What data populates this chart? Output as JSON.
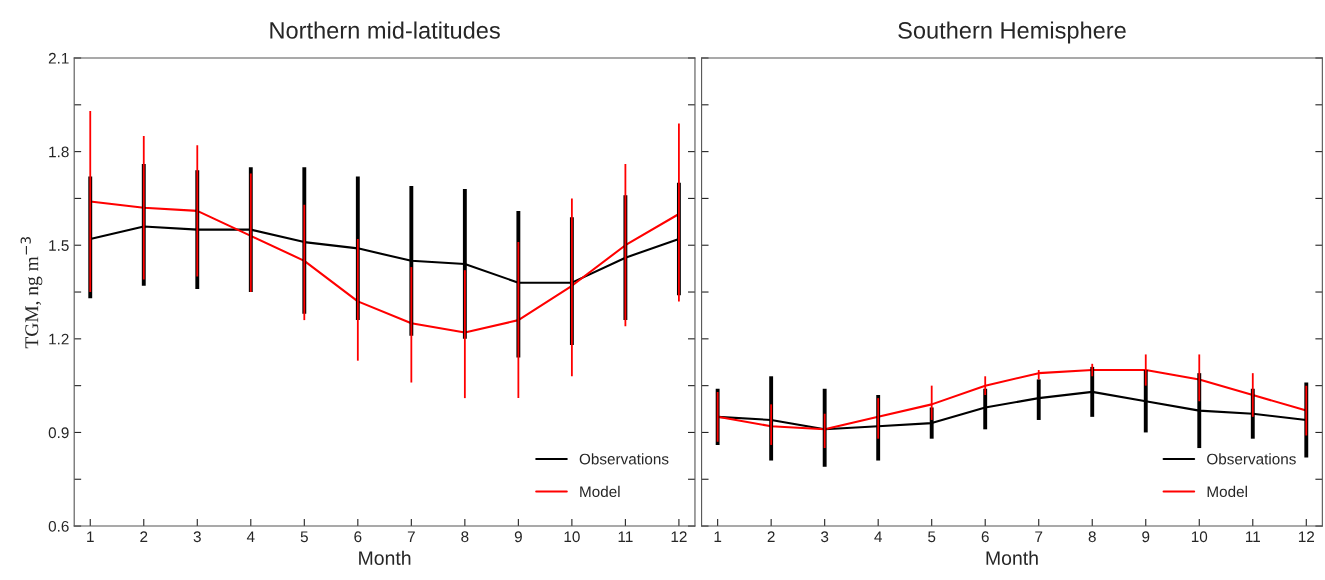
{
  "chart_data": [
    {
      "type": "line",
      "title": "Northern mid-latitudes",
      "xlabel": "Month",
      "ylabel": "TGM, ng m$^{−3}$",
      "x": [
        1,
        2,
        3,
        4,
        5,
        6,
        7,
        8,
        9,
        10,
        11,
        12
      ],
      "xlim": [
        0.7,
        12.3
      ],
      "xticks": [
        1,
        2,
        3,
        4,
        5,
        6,
        7,
        8,
        9,
        10,
        11,
        12
      ],
      "ylim": [
        0.6,
        2.1
      ],
      "yticks": [
        0.6,
        {
          "value": 0.75,
          "label": null
        },
        0.9,
        {
          "value": 1.05,
          "label": null
        },
        1.2,
        {
          "value": 1.35,
          "label": null
        },
        1.5,
        {
          "value": 1.65,
          "label": null
        },
        1.8,
        {
          "value": 1.95,
          "label": null
        },
        2.1
      ],
      "grid": false,
      "legend": "bottom right",
      "marker": "none",
      "line_style": "solid",
      "series": [
        {
          "name": "Observations",
          "color": "#000000",
          "values": [
            1.52,
            1.56,
            1.55,
            1.55,
            1.51,
            1.49,
            1.45,
            1.44,
            1.38,
            1.38,
            1.46,
            1.52
          ],
          "errors": [
            [
              1.33,
              1.72
            ],
            [
              1.37,
              1.76
            ],
            [
              1.36,
              1.74
            ],
            [
              1.35,
              1.75
            ],
            [
              1.28,
              1.75
            ],
            [
              1.26,
              1.72
            ],
            [
              1.21,
              1.69
            ],
            [
              1.2,
              1.68
            ],
            [
              1.14,
              1.61
            ],
            [
              1.18,
              1.59
            ],
            [
              1.26,
              1.66
            ],
            [
              1.34,
              1.7
            ]
          ]
        },
        {
          "name": "Model",
          "color": "#ff0000",
          "values": [
            1.64,
            1.62,
            1.61,
            1.53,
            1.45,
            1.32,
            1.25,
            1.22,
            1.26,
            1.37,
            1.5,
            1.6
          ],
          "errors": [
            [
              1.35,
              1.93
            ],
            [
              1.39,
              1.85
            ],
            [
              1.4,
              1.82
            ],
            [
              1.35,
              1.73
            ],
            [
              1.26,
              1.63
            ],
            [
              1.13,
              1.52
            ],
            [
              1.06,
              1.43
            ],
            [
              1.01,
              1.42
            ],
            [
              1.01,
              1.51
            ],
            [
              1.08,
              1.65
            ],
            [
              1.24,
              1.76
            ],
            [
              1.32,
              1.89
            ]
          ]
        }
      ]
    },
    {
      "type": "line",
      "title": "Southern Hemisphere",
      "xlabel": "Month",
      "x": [
        1,
        2,
        3,
        4,
        5,
        6,
        7,
        8,
        9,
        10,
        11,
        12
      ],
      "xlim": [
        0.7,
        12.3
      ],
      "xticks": [
        1,
        2,
        3,
        4,
        5,
        6,
        7,
        8,
        9,
        10,
        11,
        12
      ],
      "ylim": [
        0.6,
        2.1
      ],
      "yticks": [
        0.6,
        {
          "value": 0.75,
          "label": null
        },
        0.9,
        {
          "value": 1.05,
          "label": null
        },
        1.2,
        {
          "value": 1.35,
          "label": null
        },
        1.5,
        {
          "value": 1.65,
          "label": null
        },
        1.8,
        {
          "value": 1.95,
          "label": null
        },
        2.1
      ],
      "tick_labels": "x",
      "grid": false,
      "legend": "bottom right",
      "marker": "none",
      "line_style": "solid",
      "series": [
        {
          "name": "Observations",
          "color": "#000000",
          "values": [
            0.95,
            0.94,
            0.91,
            0.92,
            0.93,
            0.98,
            1.01,
            1.03,
            1.0,
            0.97,
            0.96,
            0.94
          ],
          "errors": [
            [
              0.86,
              1.04
            ],
            [
              0.81,
              1.08
            ],
            [
              0.79,
              1.04
            ],
            [
              0.81,
              1.02
            ],
            [
              0.88,
              0.98
            ],
            [
              0.91,
              1.04
            ],
            [
              0.94,
              1.07
            ],
            [
              0.95,
              1.11
            ],
            [
              0.9,
              1.1
            ],
            [
              0.85,
              1.09
            ],
            [
              0.88,
              1.04
            ],
            [
              0.82,
              1.06
            ]
          ]
        },
        {
          "name": "Model",
          "color": "#ff0000",
          "values": [
            0.95,
            0.92,
            0.91,
            0.95,
            0.99,
            1.05,
            1.09,
            1.1,
            1.1,
            1.07,
            1.02,
            0.97
          ],
          "errors": [
            [
              0.87,
              1.03
            ],
            [
              0.86,
              0.99
            ],
            [
              0.85,
              0.96
            ],
            [
              0.88,
              1.01
            ],
            [
              0.94,
              1.05
            ],
            [
              1.02,
              1.08
            ],
            [
              1.07,
              1.1
            ],
            [
              1.08,
              1.12
            ],
            [
              1.05,
              1.15
            ],
            [
              1.0,
              1.15
            ],
            [
              0.95,
              1.09
            ],
            [
              0.89,
              1.05
            ]
          ]
        }
      ]
    }
  ]
}
